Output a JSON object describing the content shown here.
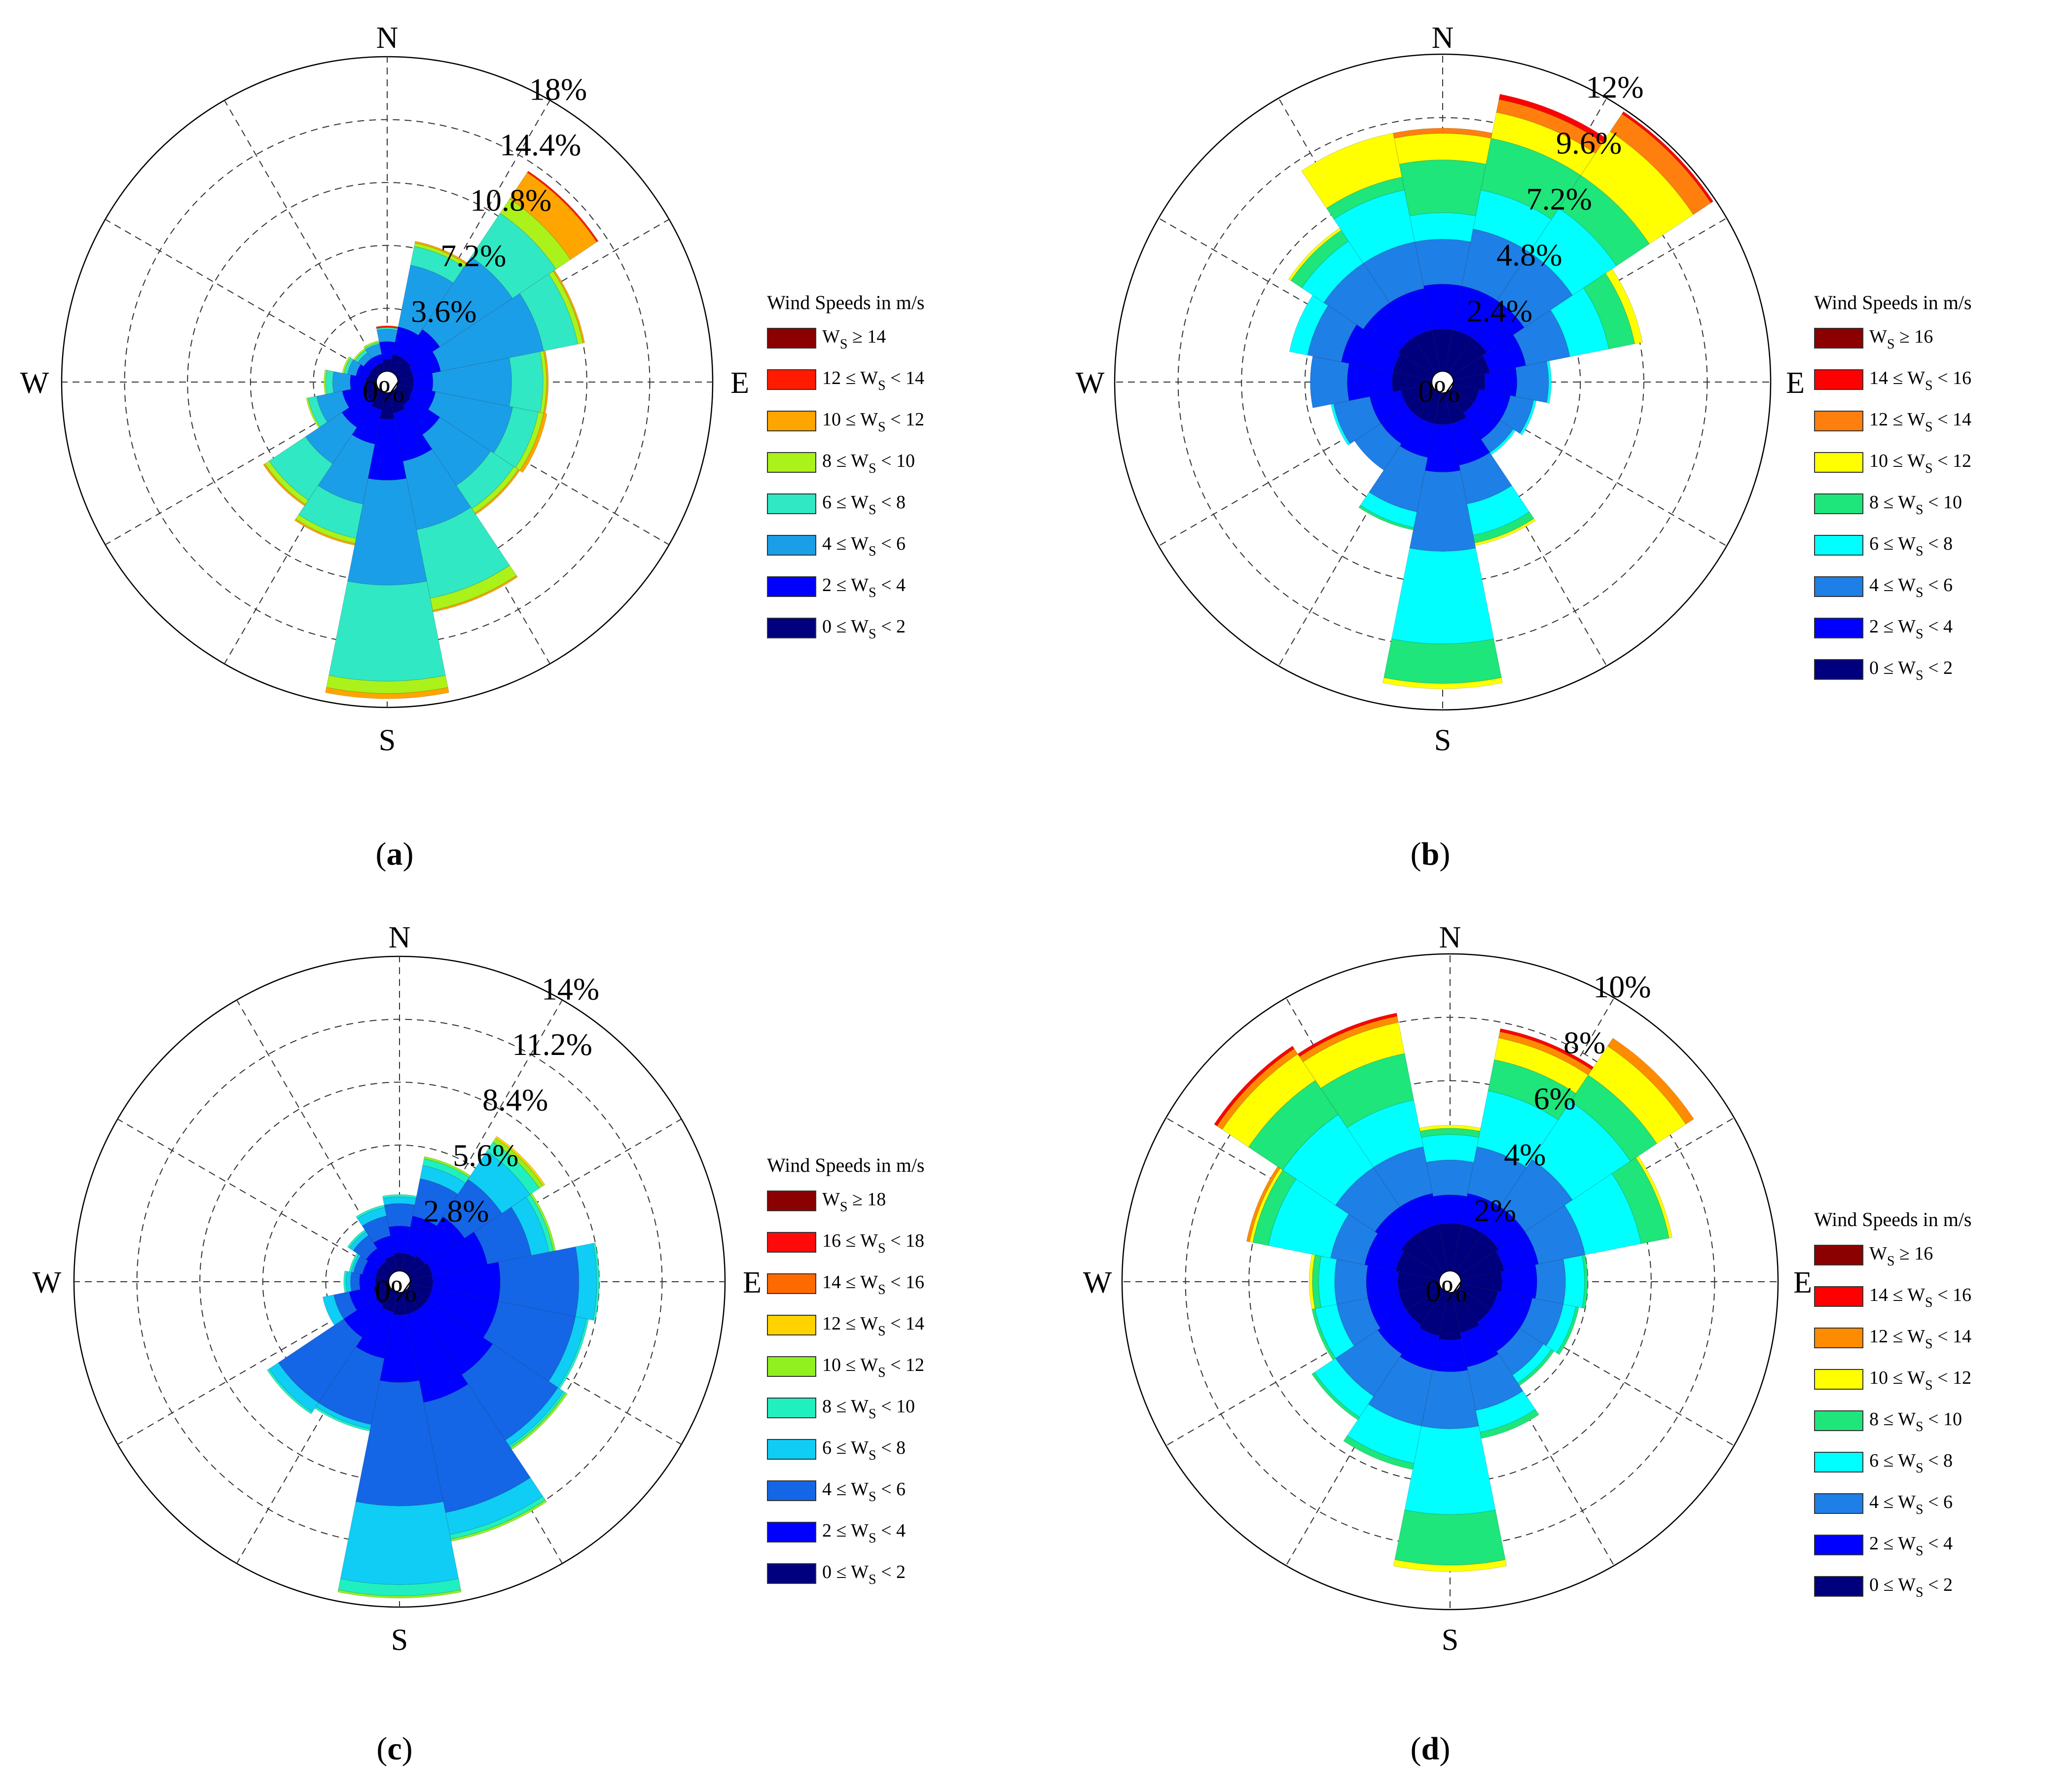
{
  "figure": {
    "legend_title": "Wind Speeds in m/s",
    "directions": [
      "N",
      "E",
      "S",
      "W"
    ]
  },
  "chart_data": [
    {
      "type": "windrose",
      "panel": "(a)",
      "label_text": "a",
      "radial_ticks": [
        "0%",
        "3.6%",
        "7.2%",
        "10.8%",
        "14.4%",
        "18%"
      ],
      "rmax": 18,
      "bins": [
        {
          "label": "0 ≤ WS < 2",
          "lo": "0 ≤ W",
          "hi": " < 2",
          "sub": "S",
          "color": "#00007f"
        },
        {
          "label": "2 ≤ WS < 4",
          "lo": "2 ≤ W",
          "hi": " < 4",
          "sub": "S",
          "color": "#0000ff"
        },
        {
          "label": "4 ≤ WS < 6",
          "lo": "4 ≤ W",
          "hi": " < 6",
          "sub": "S",
          "color": "#1b9ee8"
        },
        {
          "label": "6 ≤ WS < 8",
          "lo": "6 ≤ W",
          "hi": " < 8",
          "sub": "S",
          "color": "#30e8c3"
        },
        {
          "label": "8 ≤ WS < 10",
          "lo": "8 ≤ W",
          "hi": " < 10",
          "sub": "S",
          "color": "#aaf21a"
        },
        {
          "label": "10 ≤ WS < 12",
          "lo": "10 ≤ W",
          "hi": " < 12",
          "sub": "S",
          "color": "#ffa500"
        },
        {
          "label": "12 ≤ WS < 14",
          "lo": "12 ≤ W",
          "hi": " < 14",
          "sub": "S",
          "color": "#ff1a00"
        },
        {
          "label": "WS ≥ 14",
          "lo": "W",
          "hi": " ≥ 14",
          "sub": "S",
          "color": "#8b0000"
        }
      ],
      "cumulative": [
        [
          0.7,
          1.7,
          2.4,
          2.5,
          2.5,
          2.5,
          2.6,
          2.6
        ],
        [
          1.0,
          2.6,
          6.2,
          7.3,
          7.5,
          7.6,
          7.6,
          7.6
        ],
        [
          1.0,
          3.0,
          8.0,
          11.0,
          12.0,
          13.8,
          13.9,
          13.9
        ],
        [
          0.9,
          2.5,
          8.5,
          10.5,
          10.8,
          10.9,
          10.9,
          10.9
        ],
        [
          0.9,
          2.0,
          6.5,
          8.3,
          8.5,
          8.6,
          8.6,
          8.6
        ],
        [
          0.9,
          2.2,
          6.7,
          8.2,
          8.5,
          8.7,
          8.7,
          8.7
        ],
        [
          1.0,
          3.0,
          6.5,
          8.1,
          8.4,
          8.5,
          8.5,
          8.5
        ],
        [
          1.2,
          4.0,
          8.0,
          12.0,
          12.7,
          12.8,
          12.8,
          12.8
        ],
        [
          1.5,
          5.0,
          11.0,
          16.5,
          17.2,
          17.5,
          17.5,
          17.5
        ],
        [
          1.0,
          3.0,
          6.5,
          8.5,
          8.8,
          8.9,
          8.9,
          8.9
        ],
        [
          0.8,
          2.5,
          5.0,
          7.5,
          7.8,
          7.9,
          7.9,
          7.9
        ],
        [
          0.7,
          2.0,
          3.5,
          4.0,
          4.1,
          4.1,
          4.1,
          4.1
        ],
        [
          0.6,
          1.5,
          2.5,
          2.9,
          3.0,
          3.0,
          3.0,
          3.0
        ],
        [
          0.5,
          1.2,
          1.7,
          1.9,
          2.0,
          2.0,
          2.0,
          2.0
        ],
        [
          0.5,
          1.0,
          1.4,
          1.6,
          1.7,
          1.7,
          1.7,
          1.7
        ],
        [
          0.5,
          1.0,
          1.6,
          1.7,
          1.8,
          1.8,
          1.8,
          1.8
        ]
      ]
    },
    {
      "type": "windrose",
      "panel": "(b)",
      "label_text": "b",
      "radial_ticks": [
        "0%",
        "2.4%",
        "4.8%",
        "7.2%",
        "9.6%",
        "12%"
      ],
      "rmax": 12,
      "bins": [
        {
          "label": "0 ≤ WS < 2",
          "lo": "0 ≤ W",
          "hi": " < 2",
          "sub": "S",
          "color": "#00007f"
        },
        {
          "label": "2 ≤ WS < 4",
          "lo": "2 ≤ W",
          "hi": " < 4",
          "sub": "S",
          "color": "#0000ff"
        },
        {
          "label": "4 ≤ WS < 6",
          "lo": "4 ≤ W",
          "hi": " < 6",
          "sub": "S",
          "color": "#1e7fe6"
        },
        {
          "label": "6 ≤ WS < 8",
          "lo": "6 ≤ W",
          "hi": " < 8",
          "sub": "S",
          "color": "#00ffff"
        },
        {
          "label": "8 ≤ WS < 10",
          "lo": "8 ≤ W",
          "hi": " < 10",
          "sub": "S",
          "color": "#1ee67a"
        },
        {
          "label": "10 ≤ WS < 12",
          "lo": "10 ≤ W",
          "hi": " < 12",
          "sub": "S",
          "color": "#ffff00"
        },
        {
          "label": "12 ≤ WS < 14",
          "lo": "12 ≤ W",
          "hi": " < 14",
          "sub": "S",
          "color": "#ff7f0e"
        },
        {
          "label": "14 ≤ WS < 16",
          "lo": "14 ≤ W",
          "hi": " < 16",
          "sub": "S",
          "color": "#ff0000"
        },
        {
          "label": "WS ≥ 16",
          "lo": "W",
          "hi": " ≥ 16",
          "sub": "S",
          "color": "#8b0000"
        }
      ],
      "cumulative": [
        [
          1.6,
          3.3,
          5.0,
          6.0,
          8.0,
          9.0,
          9.2,
          9.2,
          9.2
        ],
        [
          1.6,
          3.3,
          5.5,
          7.0,
          9.0,
          10.0,
          10.5,
          10.7,
          10.7
        ],
        [
          1.6,
          3.3,
          5.5,
          7.5,
          9.0,
          11.0,
          11.8,
          11.9,
          11.9
        ],
        [
          1.4,
          2.8,
          4.5,
          6.0,
          7.0,
          7.3,
          7.3,
          7.3,
          7.3
        ],
        [
          1.2,
          2.4,
          3.6,
          3.7,
          3.7,
          3.7,
          3.7,
          3.7,
          3.7
        ],
        [
          1.0,
          2.2,
          3.1,
          3.2,
          3.2,
          3.2,
          3.2,
          3.2,
          3.2
        ],
        [
          1.0,
          2.2,
          2.8,
          2.9,
          2.9,
          2.9,
          2.9,
          2.9,
          2.9
        ],
        [
          1.2,
          2.8,
          4.3,
          5.5,
          5.8,
          5.9,
          5.9,
          5.9,
          5.9
        ],
        [
          1.2,
          3.0,
          6.0,
          9.5,
          11.0,
          11.2,
          11.2,
          11.2,
          11.2
        ],
        [
          1.2,
          2.5,
          4.6,
          5.2,
          5.3,
          5.3,
          5.3,
          5.3,
          5.3
        ],
        [
          1.2,
          2.4,
          3.6,
          3.6,
          3.6,
          3.6,
          3.6,
          3.6,
          3.6
        ],
        [
          1.2,
          2.4,
          3.8,
          3.9,
          3.9,
          3.9,
          3.9,
          3.9,
          3.9
        ],
        [
          1.5,
          3.2,
          4.6,
          4.6,
          4.6,
          4.6,
          4.6,
          4.6,
          4.6
        ],
        [
          1.5,
          3.5,
          4.8,
          5.5,
          5.5,
          5.5,
          5.5,
          5.5,
          5.5
        ],
        [
          1.6,
          3.2,
          5.0,
          6.0,
          6.5,
          6.6,
          6.6,
          6.6,
          6.6
        ],
        [
          1.6,
          3.2,
          5.0,
          7.0,
          7.5,
          9.2,
          9.2,
          9.2,
          9.2
        ]
      ]
    },
    {
      "type": "windrose",
      "panel": "(c)",
      "label_text": "c",
      "radial_ticks": [
        "0%",
        "2.8%",
        "5.6%",
        "8.4%",
        "11.2%",
        "14%"
      ],
      "rmax": 14,
      "bins": [
        {
          "label": "0 ≤ WS < 2",
          "lo": "0 ≤ W",
          "hi": " < 2",
          "sub": "S",
          "color": "#00007f"
        },
        {
          "label": "2 ≤ WS < 4",
          "lo": "2 ≤ W",
          "hi": " < 4",
          "sub": "S",
          "color": "#0000ff"
        },
        {
          "label": "4 ≤ WS < 6",
          "lo": "4 ≤ W",
          "hi": " < 6",
          "sub": "S",
          "color": "#1466e6"
        },
        {
          "label": "6 ≤ WS < 8",
          "lo": "6 ≤ W",
          "hi": " < 8",
          "sub": "S",
          "color": "#0fcdf5"
        },
        {
          "label": "8 ≤ WS < 10",
          "lo": "8 ≤ W",
          "hi": " < 10",
          "sub": "S",
          "color": "#20f0c0"
        },
        {
          "label": "10 ≤ WS < 12",
          "lo": "10 ≤ W",
          "hi": " < 12",
          "sub": "S",
          "color": "#90f020"
        },
        {
          "label": "12 ≤ WS < 14",
          "lo": "12 ≤ W",
          "hi": " < 14",
          "sub": "S",
          "color": "#ffd200"
        },
        {
          "label": "14 ≤ WS < 16",
          "lo": "14 ≤ W",
          "hi": " < 16",
          "sub": "S",
          "color": "#ff6a00"
        },
        {
          "label": "16 ≤ WS < 18",
          "lo": "16 ≤ W",
          "hi": " < 18",
          "sub": "S",
          "color": "#ff0a0a"
        },
        {
          "label": "WS ≥ 18",
          "lo": "W",
          "hi": " ≥ 18",
          "sub": "S",
          "color": "#8b0000"
        }
      ],
      "cumulative": [
        [
          0.8,
          2.0,
          3.0,
          3.3,
          3.4,
          3.4,
          3.4,
          3.4,
          3.4,
          3.4
        ],
        [
          0.8,
          2.5,
          4.2,
          4.8,
          5.1,
          5.2,
          5.2,
          5.2,
          5.2,
          5.2
        ],
        [
          0.9,
          3.0,
          5.0,
          6.5,
          7.0,
          7.2,
          7.3,
          7.3,
          7.3,
          7.3
        ],
        [
          1.0,
          3.5,
          5.5,
          6.3,
          6.5,
          6.6,
          6.6,
          6.6,
          6.6,
          6.6
        ],
        [
          1.0,
          4.0,
          7.5,
          8.3,
          8.4,
          8.4,
          8.4,
          8.4,
          8.4,
          8.4
        ],
        [
          1.0,
          4.0,
          7.5,
          8.0,
          8.1,
          8.1,
          8.1,
          8.1,
          8.1,
          8.1
        ],
        [
          1.0,
          4.5,
          8.0,
          8.3,
          8.4,
          8.5,
          8.5,
          8.5,
          8.5,
          8.5
        ],
        [
          1.0,
          5.0,
          10.0,
          11.0,
          11.2,
          11.3,
          11.3,
          11.3,
          11.3,
          11.3
        ],
        [
          1.0,
          4.0,
          9.5,
          13.0,
          13.5,
          13.6,
          13.6,
          13.6,
          13.6,
          13.6
        ],
        [
          0.9,
          3.0,
          6.0,
          6.2,
          6.3,
          6.3,
          6.3,
          6.3,
          6.3,
          6.3
        ],
        [
          0.8,
          2.5,
          6.0,
          6.5,
          6.6,
          6.6,
          6.6,
          6.6,
          6.6,
          6.6
        ],
        [
          0.7,
          1.8,
          2.5,
          3.0,
          3.0,
          3.0,
          3.0,
          3.0,
          3.0,
          3.0
        ],
        [
          0.6,
          1.3,
          1.7,
          1.9,
          2.0,
          2.0,
          2.0,
          2.0,
          2.0,
          2.0
        ],
        [
          0.6,
          1.2,
          1.6,
          1.7,
          1.8,
          1.8,
          1.8,
          1.8,
          1.8,
          1.8
        ],
        [
          0.6,
          1.3,
          2.0,
          2.2,
          2.3,
          2.3,
          2.3,
          2.3,
          2.3,
          2.3
        ],
        [
          0.7,
          1.6,
          2.5,
          2.9,
          3.0,
          3.0,
          3.0,
          3.0,
          3.0,
          3.0
        ]
      ]
    },
    {
      "type": "windrose",
      "panel": "(d)",
      "label_text": "d",
      "radial_ticks": [
        "0%",
        "2%",
        "4%",
        "6%",
        "8%",
        "10%"
      ],
      "rmax": 10,
      "bins": [
        {
          "label": "0 ≤ WS < 2",
          "lo": "0 ≤ W",
          "hi": " < 2",
          "sub": "S",
          "color": "#00007f"
        },
        {
          "label": "2 ≤ WS < 4",
          "lo": "2 ≤ W",
          "hi": " < 4",
          "sub": "S",
          "color": "#0000ff"
        },
        {
          "label": "4 ≤ WS < 6",
          "lo": "4 ≤ W",
          "hi": " < 6",
          "sub": "S",
          "color": "#1e7fe6"
        },
        {
          "label": "6 ≤ WS < 8",
          "lo": "6 ≤ W",
          "hi": " < 8",
          "sub": "S",
          "color": "#00ffff"
        },
        {
          "label": "8 ≤ WS < 10",
          "lo": "8 ≤ W",
          "hi": " < 10",
          "sub": "S",
          "color": "#1ee67a"
        },
        {
          "label": "10 ≤ WS < 12",
          "lo": "10 ≤ W",
          "hi": " < 12",
          "sub": "S",
          "color": "#ffff00"
        },
        {
          "label": "12 ≤ WS < 14",
          "lo": "12 ≤ W",
          "hi": " < 14",
          "sub": "S",
          "color": "#ff8c00"
        },
        {
          "label": "14 ≤ WS < 16",
          "lo": "14 ≤ W",
          "hi": " < 16",
          "sub": "S",
          "color": "#ff0000"
        },
        {
          "label": "WS ≥ 16",
          "lo": "W",
          "hi": " ≥ 16",
          "sub": "S",
          "color": "#8b0000"
        }
      ],
      "cumulative": [
        [
          1.5,
          2.4,
          3.5,
          4.3,
          4.5,
          4.6,
          4.6,
          4.6,
          4.6
        ],
        [
          1.5,
          2.5,
          4.0,
          5.8,
          6.8,
          7.5,
          7.7,
          7.8,
          7.8
        ],
        [
          1.5,
          2.5,
          4.3,
          6.5,
          7.5,
          8.6,
          8.9,
          8.9,
          8.9
        ],
        [
          1.4,
          2.5,
          4.0,
          5.8,
          6.7,
          6.8,
          6.8,
          6.8,
          6.8
        ],
        [
          1.3,
          2.4,
          3.3,
          3.9,
          4.0,
          4.0,
          4.0,
          4.0,
          4.0
        ],
        [
          1.2,
          2.3,
          3.3,
          3.7,
          3.8,
          3.8,
          3.8,
          3.8,
          3.8
        ],
        [
          1.2,
          2.3,
          3.2,
          3.5,
          3.6,
          3.6,
          3.6,
          3.6,
          3.6
        ],
        [
          1.3,
          2.4,
          3.8,
          4.5,
          4.7,
          4.7,
          4.7,
          4.7,
          4.7
        ],
        [
          1.5,
          2.5,
          4.3,
          7.0,
          8.6,
          8.8,
          8.8,
          8.8,
          8.8
        ],
        [
          1.4,
          2.5,
          4.3,
          5.5,
          5.7,
          5.7,
          5.7,
          5.7,
          5.7
        ],
        [
          1.3,
          2.4,
          4.0,
          4.8,
          4.9,
          4.9,
          4.9,
          4.9,
          4.9
        ],
        [
          1.3,
          2.3,
          3.3,
          4.0,
          4.1,
          4.1,
          4.1,
          4.1,
          4.1
        ],
        [
          1.3,
          2.3,
          3.3,
          3.8,
          4.0,
          4.1,
          4.1,
          4.1,
          4.1
        ],
        [
          1.4,
          2.4,
          3.5,
          5.5,
          6.0,
          6.1,
          6.2,
          6.2,
          6.2
        ],
        [
          1.5,
          2.5,
          4.0,
          6.0,
          7.3,
          8.3,
          8.5,
          8.6,
          8.6
        ],
        [
          1.5,
          2.5,
          4.0,
          5.5,
          7.0,
          8.0,
          8.2,
          8.3,
          8.3
        ]
      ]
    }
  ]
}
